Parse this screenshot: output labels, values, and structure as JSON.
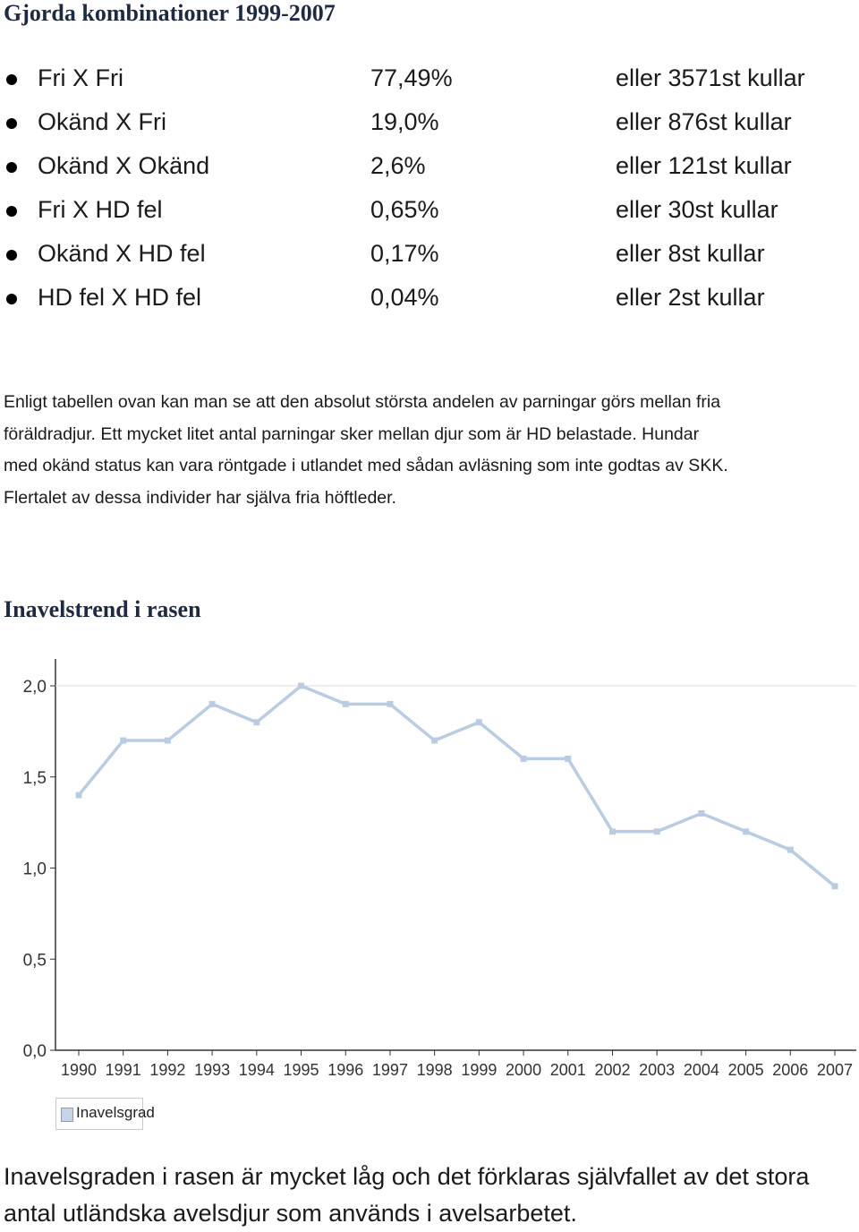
{
  "title": "Gjorda kombinationer 1999-2007",
  "combinations": [
    {
      "name": "Fri X Fri",
      "percent": "77,49%",
      "count": "eller 3571st kullar"
    },
    {
      "name": "Okänd X Fri",
      "percent": "19,0%",
      "count": "eller 876st kullar"
    },
    {
      "name": "Okänd X Okänd",
      "percent": "2,6%",
      "count": "eller 121st kullar"
    },
    {
      "name": "Fri X HD fel",
      "percent": "0,65%",
      "count": "eller 30st kullar"
    },
    {
      "name": "Okänd X HD fel",
      "percent": "0,17%",
      "count": "eller 8st kullar"
    },
    {
      "name": "HD fel X HD fel",
      "percent": "0,04%",
      "count": "eller 2st kullar"
    }
  ],
  "paragraph": {
    "lines": [
      "Enligt tabellen ovan kan man se att den absolut största andelen av parningar görs mellan fria",
      "föräldradjur. Ett mycket litet antal parningar sker mellan djur som är HD belastade. Hundar",
      "med okänd status kan vara röntgade i utlandet med sådan avläsning som inte godtas av SKK.",
      "Flertalet av dessa individer har själva fria höftleder."
    ]
  },
  "section_title": "Inavelstrend i rasen",
  "chart_data": {
    "type": "line",
    "title": "",
    "xlabel": "",
    "ylabel": "",
    "x": [
      "1990",
      "1991",
      "1992",
      "1993",
      "1994",
      "1995",
      "1996",
      "1997",
      "1998",
      "1999",
      "2000",
      "2001",
      "2002",
      "2003",
      "2004",
      "2005",
      "2006",
      "2007"
    ],
    "series": [
      {
        "name": "Inavelsgrad",
        "values": [
          1.4,
          1.7,
          1.7,
          1.9,
          1.8,
          2.0,
          1.9,
          1.9,
          1.7,
          1.8,
          1.6,
          1.6,
          1.2,
          1.2,
          1.3,
          1.2,
          1.1,
          0.9
        ]
      }
    ],
    "yticks": [
      "0,0",
      "0,5",
      "1,0",
      "1,5",
      "2,0"
    ],
    "ytick_values": [
      0,
      0.5,
      1.0,
      1.5,
      2.0
    ],
    "ylim": [
      0,
      2.0
    ],
    "grid": false,
    "legend_position": "bottom-left",
    "line_color": "#b8cce4",
    "marker_color": "#b8cce4"
  },
  "footer": {
    "lines": [
      "Inavelsgraden i rasen är mycket låg och det förklaras självfallet av det stora",
      "antal utländska avelsdjur som används i avelsarbetet."
    ]
  }
}
